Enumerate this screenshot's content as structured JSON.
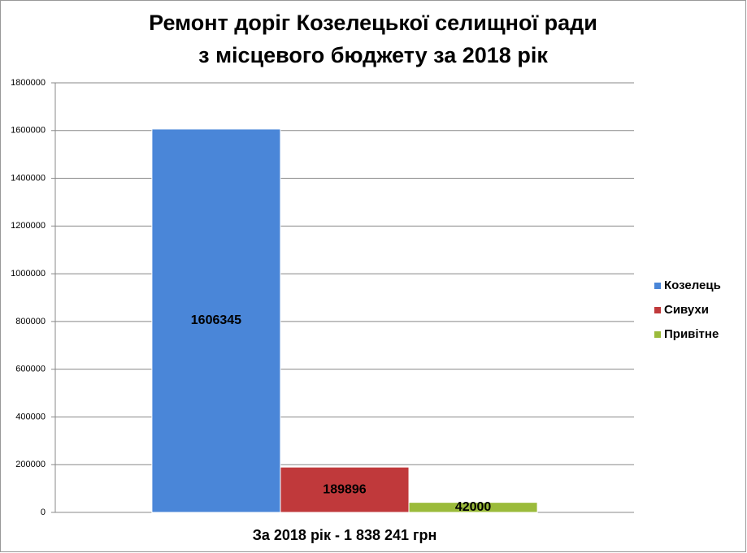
{
  "chart_data": {
    "type": "bar",
    "title": [
      "Ремонт доріг Козелецької  селищної ради",
      "з місцевого бюджету за 2018 рік"
    ],
    "categories": [
      "За 2018 рік - 1 838 241 грн"
    ],
    "series": [
      {
        "name": "Козелець",
        "color": "#4a86d8",
        "values": [
          1606345
        ]
      },
      {
        "name": "Сивухи",
        "color": "#c0393b",
        "values": [
          189896
        ]
      },
      {
        "name": "Привітне",
        "color": "#9bbb3b",
        "values": [
          42000
        ]
      }
    ],
    "ylim": [
      0,
      1800000
    ],
    "yticks": [
      0,
      200000,
      400000,
      600000,
      800000,
      1000000,
      1200000,
      1400000,
      1600000,
      1800000
    ],
    "grid": true,
    "legend": "right"
  }
}
